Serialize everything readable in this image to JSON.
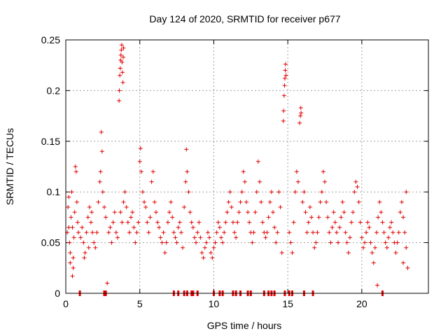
{
  "chart_data": {
    "type": "scatter",
    "title": "Day 124 of 2020, SRMTID for receiver p677",
    "xlabel": "GPS time / hours",
    "ylabel": "SRMTID / TECUs",
    "xlim": [
      0,
      24.5
    ],
    "ylim": [
      0,
      0.25
    ],
    "x_ticks": [
      0,
      5,
      10,
      15,
      20
    ],
    "x_tick_labels": [
      "0",
      "5",
      "10",
      "15",
      "20"
    ],
    "y_ticks": [
      0,
      0.05,
      0.1,
      0.15,
      0.2,
      0.25
    ],
    "y_tick_labels": [
      "0",
      "0.05",
      "0.1",
      "0.15",
      "0.2",
      "0.25"
    ],
    "grid": true,
    "marker": "+",
    "color": "#e00000",
    "series": [
      {
        "name": "SRMTID",
        "points": [
          [
            0.1,
            0.06
          ],
          [
            0.15,
            0.085
          ],
          [
            0.2,
            0.095
          ],
          [
            0.25,
            0.05
          ],
          [
            0.3,
            0.04
          ],
          [
            0.35,
            0.075
          ],
          [
            0.4,
            0.1
          ],
          [
            0.45,
            0.065
          ],
          [
            0.5,
            0.035
          ],
          [
            0.55,
            0.055
          ],
          [
            0.6,
            0.08
          ],
          [
            0.65,
            0.125
          ],
          [
            0.7,
            0.12
          ],
          [
            0.75,
            0.09
          ],
          [
            0.8,
            0.07
          ],
          [
            0.85,
            0.06
          ],
          [
            0.5,
            0.025
          ],
          [
            0.45,
            0.017
          ],
          [
            0.3,
            0.03
          ],
          [
            0.2,
            0.065
          ],
          [
            1.0,
            0.055
          ],
          [
            1.1,
            0.065
          ],
          [
            1.2,
            0.05
          ],
          [
            1.3,
            0.04
          ],
          [
            1.4,
            0.06
          ],
          [
            1.5,
            0.075
          ],
          [
            1.6,
            0.085
          ],
          [
            1.7,
            0.07
          ],
          [
            1.8,
            0.06
          ],
          [
            1.9,
            0.05
          ],
          [
            2.0,
            0.045
          ],
          [
            2.1,
            0.06
          ],
          [
            1.25,
            0.035
          ],
          [
            1.55,
            0.045
          ],
          [
            1.75,
            0.08
          ],
          [
            2.2,
            0.09
          ],
          [
            2.3,
            0.11
          ],
          [
            2.35,
            0.12
          ],
          [
            2.4,
            0.159
          ],
          [
            2.45,
            0.14
          ],
          [
            2.5,
            0.1
          ],
          [
            2.6,
            0.085
          ],
          [
            2.7,
            0.075
          ],
          [
            2.8,
            0.01
          ],
          [
            2.9,
            0.06
          ],
          [
            3.0,
            0.065
          ],
          [
            3.1,
            0.05
          ],
          [
            3.2,
            0.07
          ],
          [
            3.3,
            0.08
          ],
          [
            3.4,
            0.06
          ],
          [
            3.5,
            0.055
          ],
          [
            3.6,
            0.19
          ],
          [
            3.62,
            0.2
          ],
          [
            3.65,
            0.215
          ],
          [
            3.68,
            0.222
          ],
          [
            3.7,
            0.23
          ],
          [
            3.72,
            0.235
          ],
          [
            3.75,
            0.24
          ],
          [
            3.78,
            0.245
          ],
          [
            3.8,
            0.228
          ],
          [
            3.83,
            0.218
          ],
          [
            3.86,
            0.208
          ],
          [
            3.88,
            0.233
          ],
          [
            3.9,
            0.242
          ],
          [
            3.7,
            0.08
          ],
          [
            3.8,
            0.07
          ],
          [
            3.9,
            0.09
          ],
          [
            4.0,
            0.1
          ],
          [
            4.1,
            0.085
          ],
          [
            4.2,
            0.07
          ],
          [
            4.3,
            0.06
          ],
          [
            4.4,
            0.075
          ],
          [
            4.5,
            0.08
          ],
          [
            4.6,
            0.065
          ],
          [
            4.7,
            0.05
          ],
          [
            4.8,
            0.06
          ],
          [
            4.9,
            0.07
          ],
          [
            5.0,
            0.13
          ],
          [
            5.05,
            0.143
          ],
          [
            5.1,
            0.12
          ],
          [
            5.2,
            0.1
          ],
          [
            5.3,
            0.09
          ],
          [
            5.4,
            0.085
          ],
          [
            5.5,
            0.07
          ],
          [
            5.6,
            0.06
          ],
          [
            5.7,
            0.075
          ],
          [
            5.8,
            0.11
          ],
          [
            5.9,
            0.12
          ],
          [
            6.0,
            0.09
          ],
          [
            6.1,
            0.08
          ],
          [
            6.2,
            0.07
          ],
          [
            6.3,
            0.065
          ],
          [
            6.4,
            0.055
          ],
          [
            6.5,
            0.05
          ],
          [
            6.6,
            0.06
          ],
          [
            6.7,
            0.04
          ],
          [
            6.8,
            0.05
          ],
          [
            6.9,
            0.07
          ],
          [
            7.0,
            0.08
          ],
          [
            7.1,
            0.09
          ],
          [
            7.2,
            0.075
          ],
          [
            7.3,
            0.06
          ],
          [
            7.4,
            0.055
          ],
          [
            7.5,
            0.05
          ],
          [
            7.6,
            0.065
          ],
          [
            7.7,
            0.07
          ],
          [
            7.8,
            0.06
          ],
          [
            7.9,
            0.045
          ],
          [
            8.0,
            0.085
          ],
          [
            8.1,
            0.11
          ],
          [
            8.15,
            0.142
          ],
          [
            8.2,
            0.12
          ],
          [
            8.3,
            0.1
          ],
          [
            8.4,
            0.08
          ],
          [
            8.5,
            0.07
          ],
          [
            8.6,
            0.065
          ],
          [
            8.7,
            0.055
          ],
          [
            8.8,
            0.05
          ],
          [
            8.9,
            0.06
          ],
          [
            9.0,
            0.07
          ],
          [
            9.1,
            0.055
          ],
          [
            9.2,
            0.04
          ],
          [
            9.3,
            0.035
          ],
          [
            9.4,
            0.045
          ],
          [
            9.5,
            0.05
          ],
          [
            9.6,
            0.06
          ],
          [
            9.7,
            0.055
          ],
          [
            9.8,
            0.04
          ],
          [
            9.9,
            0.035
          ],
          [
            10.0,
            0.045
          ],
          [
            10.1,
            0.05
          ],
          [
            10.2,
            0.06
          ],
          [
            10.3,
            0.07
          ],
          [
            10.4,
            0.065
          ],
          [
            10.5,
            0.055
          ],
          [
            10.6,
            0.05
          ],
          [
            10.7,
            0.06
          ],
          [
            10.8,
            0.07
          ],
          [
            10.9,
            0.08
          ],
          [
            11.0,
            0.09
          ],
          [
            11.1,
            0.1
          ],
          [
            11.2,
            0.085
          ],
          [
            11.3,
            0.07
          ],
          [
            11.4,
            0.06
          ],
          [
            11.5,
            0.055
          ],
          [
            11.6,
            0.07
          ],
          [
            11.7,
            0.08
          ],
          [
            11.8,
            0.09
          ],
          [
            11.9,
            0.1
          ],
          [
            12.0,
            0.12
          ],
          [
            12.1,
            0.11
          ],
          [
            12.2,
            0.09
          ],
          [
            12.3,
            0.08
          ],
          [
            12.4,
            0.07
          ],
          [
            12.5,
            0.06
          ],
          [
            12.6,
            0.05
          ],
          [
            12.7,
            0.06
          ],
          [
            12.8,
            0.08
          ],
          [
            12.9,
            0.1
          ],
          [
            13.0,
            0.13
          ],
          [
            13.1,
            0.11
          ],
          [
            13.2,
            0.09
          ],
          [
            13.3,
            0.07
          ],
          [
            13.4,
            0.06
          ],
          [
            13.5,
            0.055
          ],
          [
            13.6,
            0.06
          ],
          [
            13.7,
            0.075
          ],
          [
            13.8,
            0.09
          ],
          [
            13.9,
            0.1
          ],
          [
            14.0,
            0.08
          ],
          [
            14.1,
            0.065
          ],
          [
            14.2,
            0.05
          ],
          [
            14.3,
            0.06
          ],
          [
            14.4,
            0.1
          ],
          [
            14.5,
            0.085
          ],
          [
            14.6,
            0.04
          ],
          [
            14.7,
            0.17
          ],
          [
            14.72,
            0.18
          ],
          [
            14.75,
            0.195
          ],
          [
            14.78,
            0.205
          ],
          [
            14.8,
            0.212
          ],
          [
            14.83,
            0.22
          ],
          [
            14.85,
            0.226
          ],
          [
            14.88,
            0.215
          ],
          [
            15.8,
            0.168
          ],
          [
            15.85,
            0.175
          ],
          [
            15.88,
            0.183
          ],
          [
            15.9,
            0.178
          ],
          [
            15.1,
            0.06
          ],
          [
            15.2,
            0.05
          ],
          [
            15.3,
            0.04
          ],
          [
            15.4,
            0.07
          ],
          [
            15.5,
            0.1
          ],
          [
            15.6,
            0.12
          ],
          [
            15.7,
            0.11
          ],
          [
            16.0,
            0.09
          ],
          [
            16.1,
            0.1
          ],
          [
            16.2,
            0.08
          ],
          [
            16.3,
            0.06
          ],
          [
            16.4,
            0.07
          ],
          [
            16.5,
            0.085
          ],
          [
            16.6,
            0.075
          ],
          [
            16.7,
            0.06
          ],
          [
            16.8,
            0.045
          ],
          [
            16.9,
            0.05
          ],
          [
            17.0,
            0.06
          ],
          [
            17.1,
            0.075
          ],
          [
            17.2,
            0.09
          ],
          [
            17.3,
            0.1
          ],
          [
            17.4,
            0.12
          ],
          [
            17.5,
            0.11
          ],
          [
            17.6,
            0.09
          ],
          [
            17.7,
            0.075
          ],
          [
            17.8,
            0.06
          ],
          [
            17.9,
            0.05
          ],
          [
            18.0,
            0.065
          ],
          [
            18.1,
            0.08
          ],
          [
            18.2,
            0.07
          ],
          [
            18.3,
            0.06
          ],
          [
            18.4,
            0.05
          ],
          [
            18.5,
            0.065
          ],
          [
            18.6,
            0.075
          ],
          [
            18.7,
            0.09
          ],
          [
            18.8,
            0.08
          ],
          [
            18.9,
            0.06
          ],
          [
            19.0,
            0.05
          ],
          [
            19.1,
            0.04
          ],
          [
            19.2,
            0.055
          ],
          [
            19.3,
            0.07
          ],
          [
            19.4,
            0.08
          ],
          [
            19.5,
            0.1
          ],
          [
            19.6,
            0.11
          ],
          [
            19.7,
            0.105
          ],
          [
            19.8,
            0.09
          ],
          [
            19.9,
            0.07
          ],
          [
            20.0,
            0.055
          ],
          [
            20.1,
            0.045
          ],
          [
            20.2,
            0.05
          ],
          [
            20.3,
            0.06
          ],
          [
            20.4,
            0.07
          ],
          [
            20.5,
            0.065
          ],
          [
            20.6,
            0.05
          ],
          [
            20.7,
            0.04
          ],
          [
            20.8,
            0.03
          ],
          [
            20.9,
            0.045
          ],
          [
            21.0,
            0.06
          ],
          [
            21.05,
            0.008
          ],
          [
            21.1,
            0.075
          ],
          [
            21.2,
            0.09
          ],
          [
            21.3,
            0.08
          ],
          [
            21.4,
            0.07
          ],
          [
            21.5,
            0.06
          ],
          [
            21.6,
            0.05
          ],
          [
            21.7,
            0.045
          ],
          [
            21.8,
            0.055
          ],
          [
            21.9,
            0.065
          ],
          [
            22.0,
            0.07
          ],
          [
            22.1,
            0.06
          ],
          [
            22.2,
            0.05
          ],
          [
            22.3,
            0.04
          ],
          [
            22.4,
            0.05
          ],
          [
            22.5,
            0.06
          ],
          [
            22.6,
            0.08
          ],
          [
            22.7,
            0.09
          ],
          [
            22.8,
            0.075
          ],
          [
            22.9,
            0.06
          ],
          [
            23.0,
            0.045
          ],
          [
            23.1,
            0.025
          ],
          [
            23.0,
            0.1
          ],
          [
            22.8,
            0.03
          ]
        ]
      }
    ],
    "zero_points_x": [
      0.95,
      2.6,
      2.7,
      7.3,
      7.6,
      8.0,
      8.2,
      8.5,
      8.6,
      8.9,
      10.0,
      10.4,
      10.6,
      11.3,
      11.5,
      11.8,
      12.3,
      12.5,
      13.4,
      13.7,
      13.9,
      14.1,
      14.8,
      15.1,
      15.3,
      16.1,
      16.7,
      21.4
    ]
  }
}
